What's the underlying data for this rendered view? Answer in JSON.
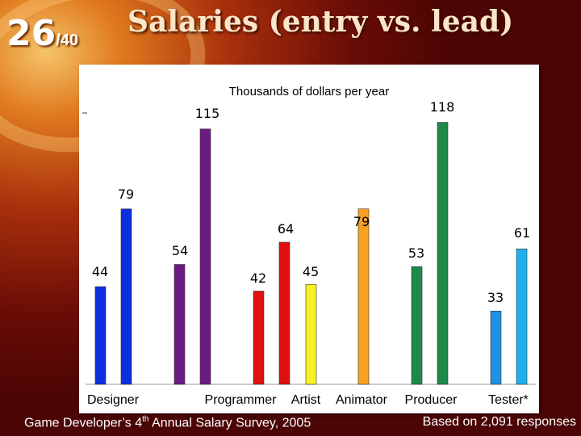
{
  "slide": {
    "number": "26",
    "total": "/40"
  },
  "title": "Salaries  (entry vs. lead)",
  "footer": {
    "left_prefix": "Game Developer’s 4",
    "left_sup": "th",
    "left_suffix": " Annual Salary Survey, 2005",
    "right": "Based on 2,091 responses"
  },
  "chart_data": {
    "type": "bar",
    "title": "Thousands of dollars per year",
    "xlabel": "",
    "ylabel": "",
    "ylim": [
      0,
      120
    ],
    "grid": false,
    "categories": [
      "Designer",
      "Programmer",
      "Artist",
      "Animator",
      "Producer",
      "Tester*"
    ],
    "series": [
      {
        "values": [
          44,
          54,
          42,
          45,
          53,
          33
        ],
        "colors": [
          "#0a2ee0",
          "#6a1a80",
          "#e01010",
          "#f8f020",
          "#1e8a4a",
          "#2090e0"
        ]
      },
      {
        "values": [
          79,
          115,
          64,
          79,
          118,
          61
        ],
        "colors": [
          "#0a2ee0",
          "#6a1a80",
          "#e01010",
          "#f8a020",
          "#1e8a4a",
          "#20b0f0"
        ]
      }
    ],
    "colors": {
      "designer_entry": "#0a2ee0",
      "designer_lead": "#0a2ee0",
      "programmer_entry": "#6a1a80",
      "programmer_lead": "#6a1a80",
      "artist_entry": "#e01010",
      "artist_lead": "#e01010",
      "animator_entry": "#f8f020",
      "animator_lead": "#f8a020",
      "producer_entry": "#1e8a4a",
      "producer_lead": "#1e8a4a",
      "tester_entry": "#2090e0",
      "tester_lead": "#20b0f0"
    }
  }
}
